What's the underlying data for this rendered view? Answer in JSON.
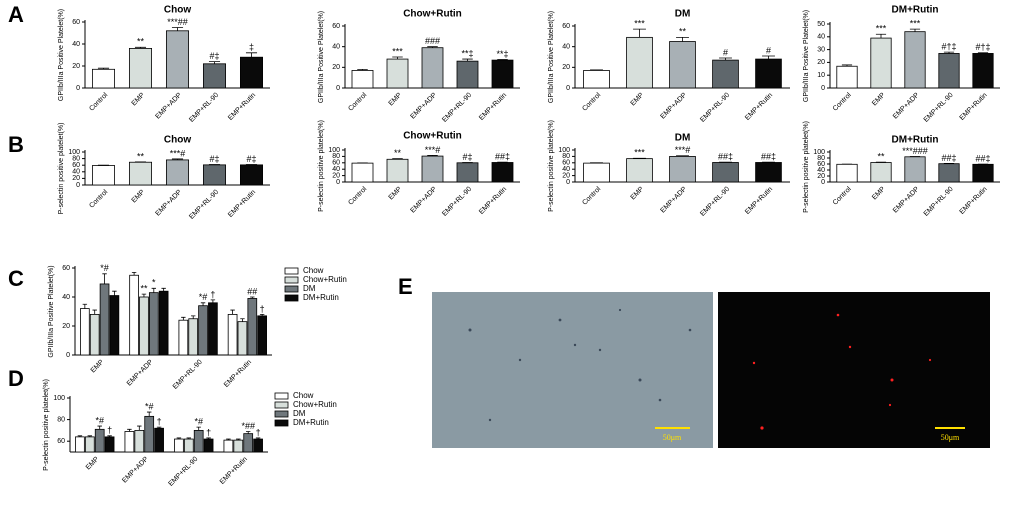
{
  "panel_labels": [
    "A",
    "B",
    "C",
    "D",
    "E"
  ],
  "image_panel": {
    "scale_labels": [
      "50μm",
      "50μm"
    ]
  },
  "chart_data": [
    {
      "type": "bar",
      "title": "Chow",
      "y_label": "GPIIb/IIIa Positive Platelet(%)",
      "categories": [
        "Control",
        "EMP",
        "EMP+ADP",
        "EMP+RL-90",
        "EMP+Rutin"
      ],
      "values": [
        17,
        36,
        52,
        22,
        28
      ],
      "errors": [
        1,
        1,
        3,
        2,
        4
      ],
      "annotations": [
        null,
        "**",
        "***##",
        "#‡",
        "‡"
      ],
      "colors": [
        "#ffffff",
        "#d7dfdb",
        "#a8b0b5",
        "#5f676c",
        "#0a0a0a"
      ],
      "ylim": [
        0,
        60
      ],
      "yticks": [
        0,
        20,
        40,
        60
      ]
    },
    {
      "type": "bar",
      "title": "Chow+Rutin",
      "y_label": "GPIIb/IIIa Positive Platelet(%)",
      "categories": [
        "Control",
        "EMP",
        "EMP+ADP",
        "EMP+RL-90",
        "EMP+Rutin"
      ],
      "values": [
        17,
        28,
        39,
        26,
        27
      ],
      "errors": [
        1,
        2,
        1,
        2,
        0.5
      ],
      "annotations": [
        null,
        "***",
        "###",
        "**‡",
        "**‡"
      ],
      "colors": [
        "#ffffff",
        "#d7dfdb",
        "#a8b0b5",
        "#5f676c",
        "#0a0a0a"
      ],
      "ylim": [
        0,
        60
      ],
      "yticks": [
        0,
        20,
        40,
        60
      ]
    },
    {
      "type": "bar",
      "title": "DM",
      "y_label": "GPIIb/IIIa Positive Platelet(%)",
      "categories": [
        "Control",
        "EMP",
        "EMP+ADP",
        "EMP+RL-90",
        "EMP+Rutin"
      ],
      "values": [
        17,
        49,
        45,
        27,
        28
      ],
      "errors": [
        0.5,
        8,
        4,
        2,
        3
      ],
      "annotations": [
        null,
        "***",
        "**",
        "#",
        "#"
      ],
      "colors": [
        "#ffffff",
        "#d7dfdb",
        "#a8b0b5",
        "#5f676c",
        "#0a0a0a"
      ],
      "ylim": [
        0,
        60
      ],
      "yticks": [
        0,
        20,
        40,
        60
      ]
    },
    {
      "type": "bar",
      "title": "DM+Rutin",
      "y_label": "GPIIb/IIIa Positive Platelet(%)",
      "categories": [
        "Control",
        "EMP",
        "EMP+ADP",
        "EMP+RL-90",
        "EMP+Rutin"
      ],
      "values": [
        17,
        39,
        44,
        27,
        27
      ],
      "errors": [
        1,
        3,
        2,
        1,
        0.5
      ],
      "annotations": [
        null,
        "***",
        "***",
        "#†‡",
        "#†‡"
      ],
      "colors": [
        "#ffffff",
        "#d7dfdb",
        "#a8b0b5",
        "#5f676c",
        "#0a0a0a"
      ],
      "ylim": [
        0,
        50
      ],
      "yticks": [
        0,
        10,
        20,
        30,
        40,
        50
      ]
    },
    {
      "type": "bar",
      "title": "Chow",
      "y_label": "P-selectin positive platelet(%)",
      "categories": [
        "Control",
        "EMP",
        "EMP+ADP",
        "EMP+RL-90",
        "EMP+Rutin"
      ],
      "values": [
        59,
        69,
        76,
        61,
        61
      ],
      "errors": [
        1,
        1,
        3,
        1,
        1
      ],
      "annotations": [
        null,
        "**",
        "***#",
        "#‡",
        "#‡"
      ],
      "colors": [
        "#ffffff",
        "#d7dfdb",
        "#a8b0b5",
        "#5f676c",
        "#0a0a0a"
      ],
      "ylim": [
        0,
        100
      ],
      "yticks": [
        0,
        20,
        40,
        60,
        80,
        100
      ]
    },
    {
      "type": "bar",
      "title": "Chow+Rutin",
      "y_label": "P-selectin positive platelet(%)",
      "categories": [
        "Control",
        "EMP",
        "EMP+ADP",
        "EMP+RL-90",
        "EMP+Rutin"
      ],
      "values": [
        59,
        71,
        81,
        60,
        61
      ],
      "errors": [
        0.5,
        2,
        2,
        1,
        1
      ],
      "annotations": [
        null,
        "**",
        "***#",
        "#‡",
        "##‡"
      ],
      "colors": [
        "#ffffff",
        "#d7dfdb",
        "#a8b0b5",
        "#5f676c",
        "#0a0a0a"
      ],
      "ylim": [
        0,
        100
      ],
      "yticks": [
        0,
        20,
        40,
        60,
        80,
        100
      ]
    },
    {
      "type": "bar",
      "title": "DM",
      "y_label": "P-selectin positive platelet(%)",
      "categories": [
        "Control",
        "EMP",
        "EMP+ADP",
        "EMP+RL-90",
        "EMP+Rutin"
      ],
      "values": [
        59,
        73,
        80,
        61,
        61
      ],
      "errors": [
        1,
        1,
        2,
        1,
        1
      ],
      "annotations": [
        null,
        "***",
        "***#",
        "##‡",
        "##‡"
      ],
      "colors": [
        "#ffffff",
        "#d7dfdb",
        "#a8b0b5",
        "#5f676c",
        "#0a0a0a"
      ],
      "ylim": [
        0,
        100
      ],
      "yticks": [
        0,
        20,
        40,
        60,
        80,
        100
      ]
    },
    {
      "type": "bar",
      "title": "DM+Rutin",
      "y_label": "P-selectin positive platelet(%)",
      "categories": [
        "Control",
        "EMP",
        "EMP+ADP",
        "EMP+RL-90",
        "EMP+Rutin"
      ],
      "values": [
        59,
        65,
        84,
        61,
        59
      ],
      "errors": [
        0.5,
        1,
        1,
        1,
        0.5
      ],
      "annotations": [
        null,
        "**",
        "***###",
        "##‡",
        "##‡"
      ],
      "colors": [
        "#ffffff",
        "#d7dfdb",
        "#a8b0b5",
        "#5f676c",
        "#0a0a0a"
      ],
      "ylim": [
        0,
        100
      ],
      "yticks": [
        0,
        20,
        40,
        60,
        80,
        100
      ]
    },
    {
      "type": "grouped_bar",
      "y_label": "GPIIb/IIIa Positive Platelet(%)",
      "categories": [
        "EMP",
        "EMP+ADP",
        "EMP+RL-90",
        "EMP+Rutin"
      ],
      "series": [
        {
          "name": "Chow",
          "color": "#ffffff",
          "values": [
            32,
            55,
            24,
            28
          ],
          "errors": [
            3,
            2,
            2,
            3
          ],
          "annotations": [
            null,
            null,
            null,
            null
          ]
        },
        {
          "name": "Chow+Rutin",
          "color": "#d7dfdb",
          "values": [
            28,
            40,
            25,
            23
          ],
          "errors": [
            3,
            2,
            2,
            2
          ],
          "annotations": [
            null,
            "**",
            null,
            null
          ]
        },
        {
          "name": "DM",
          "color": "#6f777c",
          "values": [
            49,
            43,
            34,
            39
          ],
          "errors": [
            7,
            3,
            2,
            1
          ],
          "annotations": [
            "*#",
            "*",
            "*#",
            "##"
          ]
        },
        {
          "name": "DM+Rutin",
          "color": "#0a0a0a",
          "values": [
            41,
            44,
            36,
            27
          ],
          "errors": [
            3,
            2,
            2,
            1
          ],
          "annotations": [
            null,
            null,
            "†",
            "†"
          ]
        }
      ],
      "ylim": [
        0,
        60
      ],
      "yticks": [
        0,
        20,
        40,
        60
      ]
    },
    {
      "type": "grouped_bar",
      "y_label": "P-selectin positive platelet(%)",
      "categories": [
        "EMP",
        "EMP+ADP",
        "EMP+RL-90",
        "EMP+Rutin"
      ],
      "series": [
        {
          "name": "Chow",
          "color": "#ffffff",
          "values": [
            64,
            69,
            62,
            61
          ],
          "errors": [
            1,
            2,
            1,
            1
          ],
          "annotations": [
            null,
            null,
            null,
            null
          ]
        },
        {
          "name": "Chow+Rutin",
          "color": "#d7dfdb",
          "values": [
            64,
            70,
            62,
            61
          ],
          "errors": [
            1,
            4,
            1,
            1
          ],
          "annotations": [
            null,
            null,
            null,
            null
          ]
        },
        {
          "name": "DM",
          "color": "#6f777c",
          "values": [
            71,
            83,
            70,
            67
          ],
          "errors": [
            3,
            4,
            3,
            2
          ],
          "annotations": [
            "*#",
            "*#",
            "*#",
            "*##"
          ]
        },
        {
          "name": "DM+Rutin",
          "color": "#0a0a0a",
          "values": [
            64,
            72,
            62,
            62
          ],
          "errors": [
            1,
            1,
            1,
            1
          ],
          "annotations": [
            "†",
            "†",
            "†",
            "†"
          ]
        }
      ],
      "ylim": [
        50,
        100
      ],
      "yticks": [
        60,
        80,
        100
      ]
    }
  ]
}
